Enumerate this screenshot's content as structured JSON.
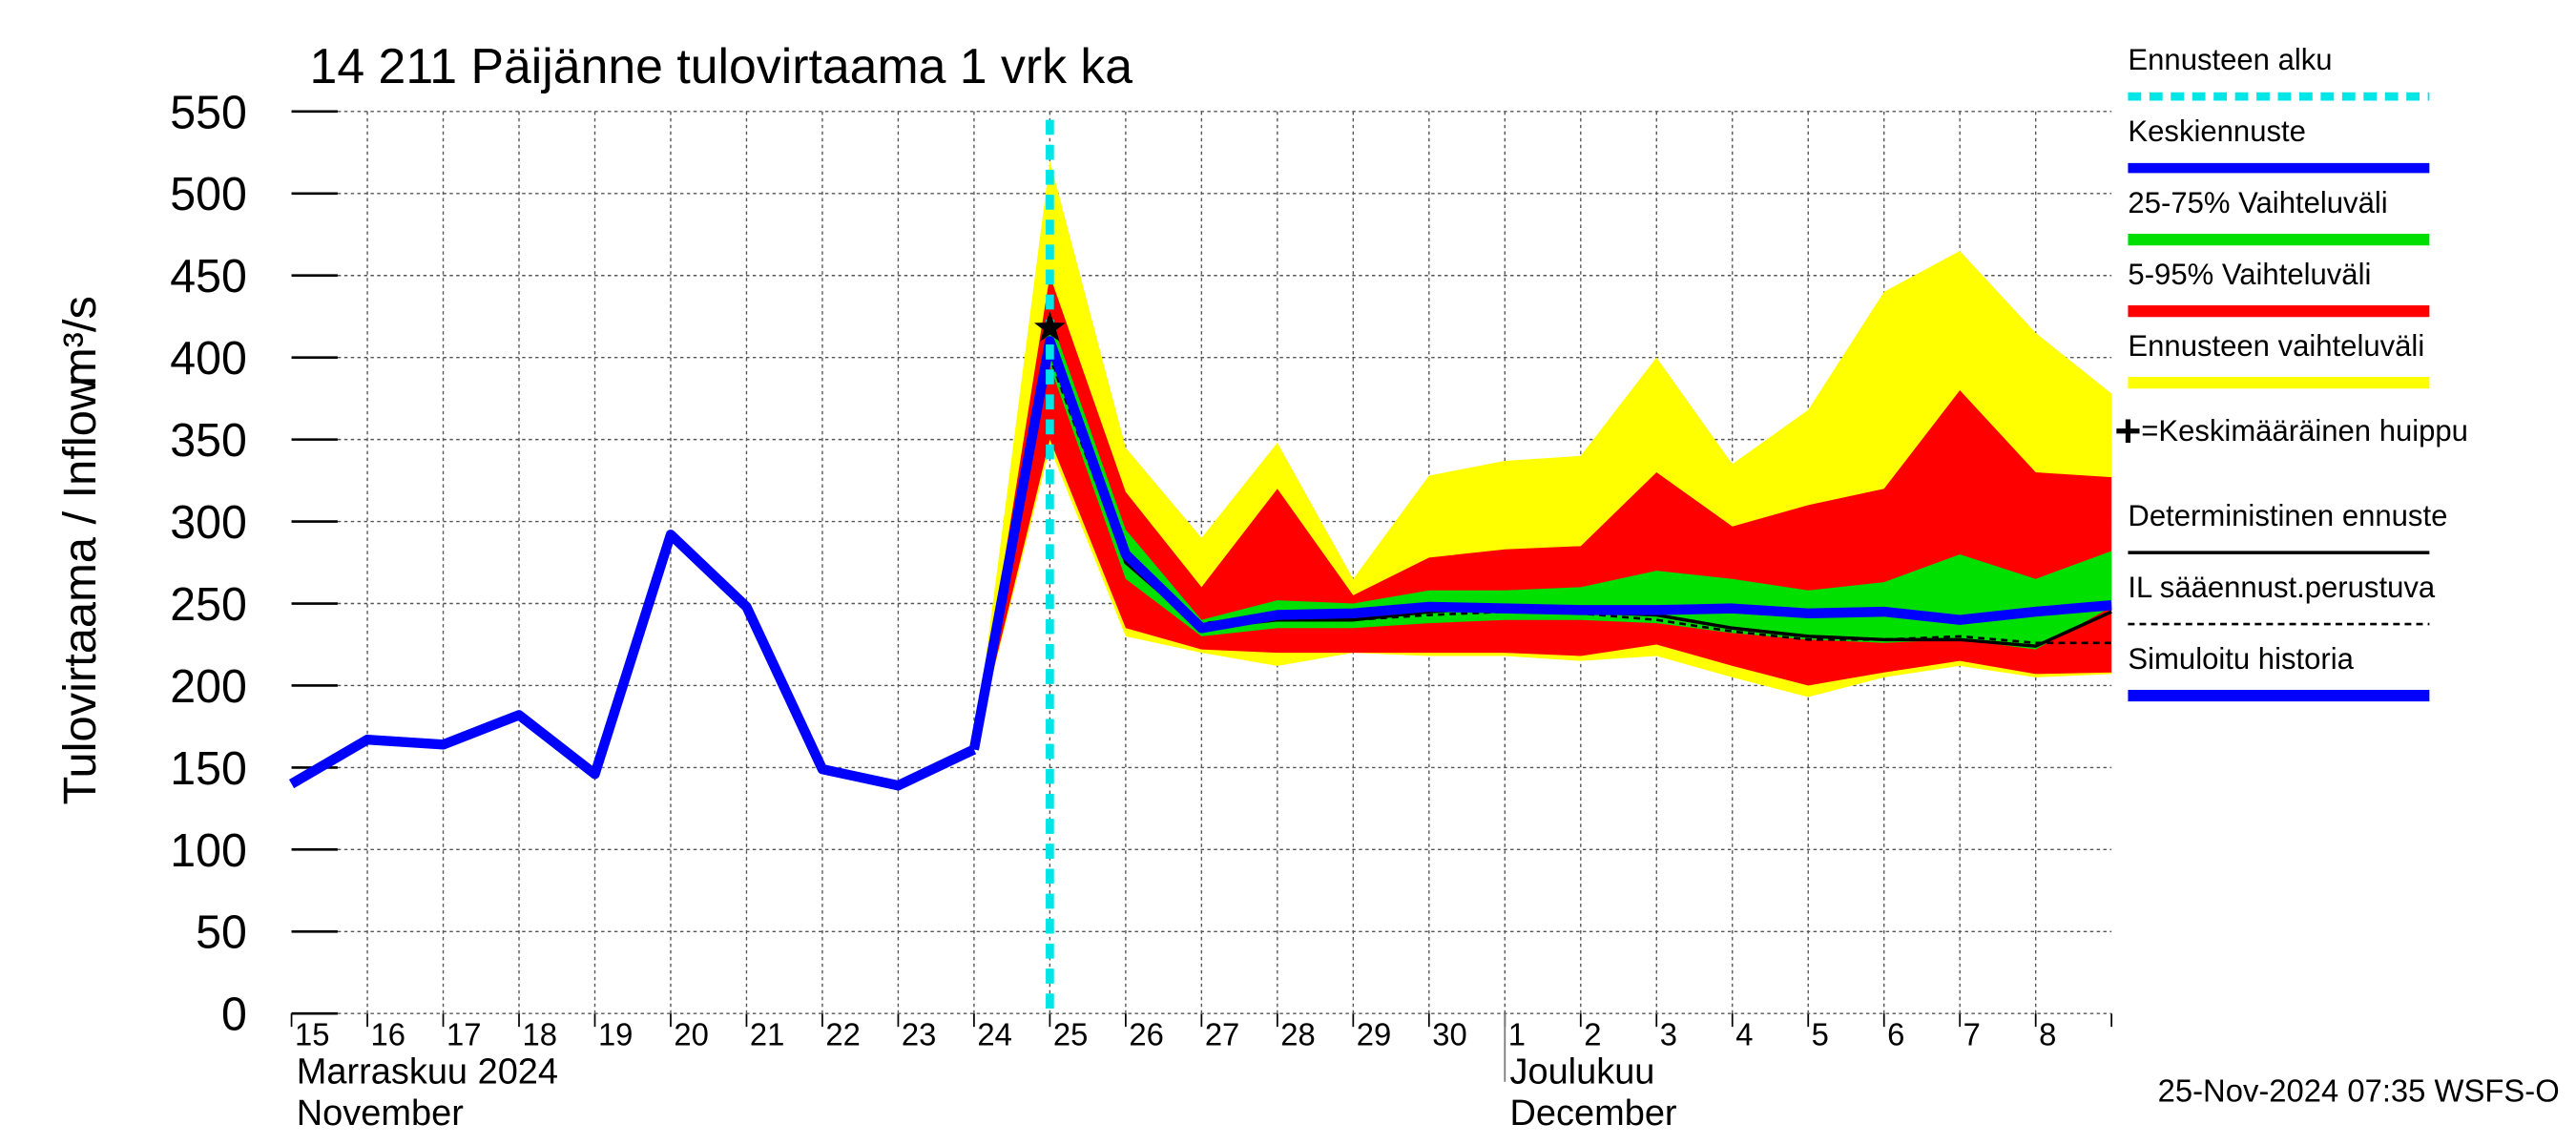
{
  "chart_data": {
    "type": "line",
    "title": "14 211 Päijänne tulovirtaama 1 vrk ka",
    "y_label": "Tulovirtaama / Inflow",
    "y_unit": "m³/s",
    "categories": [
      "15",
      "16",
      "17",
      "18",
      "19",
      "20",
      "21",
      "22",
      "23",
      "24",
      "25",
      "26",
      "27",
      "28",
      "29",
      "30",
      "1",
      "2",
      "3",
      "4",
      "5",
      "6",
      "7",
      "8",
      null
    ],
    "months": [
      {
        "fi": "Marraskuu 2024",
        "en": "November",
        "start": "15"
      },
      {
        "fi": "Joulukuu",
        "en": "December",
        "start": "1"
      }
    ],
    "ylim": [
      0,
      550
    ],
    "yticks": [
      0,
      50,
      100,
      150,
      200,
      250,
      300,
      350,
      400,
      450,
      500,
      550
    ],
    "grid": true,
    "forecast_start": {
      "name": "Ennusteen alku",
      "color": "#00e5e5",
      "category": "25"
    },
    "bands": [
      {
        "name": "25-75% Vaihteluväli",
        "color": "#00e000",
        "upper": [
          null,
          null,
          null,
          null,
          null,
          null,
          null,
          null,
          null,
          161,
          425,
          295,
          240,
          252,
          250,
          258,
          258,
          260,
          270,
          265,
          258,
          263,
          280,
          265,
          282
        ],
        "lower": [
          null,
          null,
          null,
          null,
          null,
          null,
          null,
          null,
          null,
          161,
          395,
          265,
          230,
          235,
          235,
          238,
          240,
          240,
          238,
          232,
          228,
          226,
          228,
          222,
          248
        ]
      },
      {
        "name": "5-95% Vaihteluväli",
        "color": "#ff0000",
        "upper": [
          null,
          null,
          null,
          null,
          null,
          null,
          null,
          null,
          null,
          161,
          450,
          318,
          260,
          320,
          255,
          278,
          283,
          285,
          330,
          297,
          310,
          320,
          380,
          330,
          327
        ],
        "lower": [
          null,
          null,
          null,
          null,
          null,
          null,
          null,
          null,
          null,
          161,
          350,
          235,
          222,
          220,
          220,
          220,
          220,
          218,
          225,
          212,
          200,
          208,
          215,
          207,
          208
        ]
      },
      {
        "name": "Ennusteen vaihteluväli",
        "color": "#ffff00",
        "upper": [
          null,
          null,
          null,
          null,
          null,
          null,
          null,
          null,
          null,
          161,
          520,
          345,
          290,
          348,
          265,
          328,
          337,
          340,
          400,
          335,
          368,
          440,
          465,
          415,
          378
        ],
        "lower": [
          null,
          null,
          null,
          null,
          null,
          null,
          null,
          null,
          null,
          161,
          345,
          230,
          220,
          212,
          220,
          218,
          218,
          215,
          218,
          205,
          193,
          205,
          212,
          205,
          207
        ]
      }
    ],
    "peak": {
      "name": "=Keskimääräinen huippu",
      "category": "25",
      "value": 418
    },
    "series": [
      {
        "name": "Keskiennuste",
        "color": "#0000ff",
        "style": "thick",
        "values": [
          null,
          null,
          null,
          null,
          null,
          null,
          null,
          null,
          null,
          161,
          410,
          280,
          235,
          243,
          244,
          248,
          247,
          246,
          246,
          247,
          244,
          245,
          240,
          245,
          249
        ]
      },
      {
        "name": "Deterministinen ennuste",
        "color": "#000000",
        "style": "thin",
        "values": [
          null,
          null,
          null,
          null,
          null,
          null,
          null,
          null,
          null,
          161,
          410,
          275,
          235,
          240,
          240,
          245,
          248,
          245,
          243,
          235,
          230,
          228,
          228,
          224,
          245
        ]
      },
      {
        "name": "IL sääennust.perustuva",
        "color": "#000000",
        "style": "dashed",
        "values": [
          null,
          null,
          null,
          null,
          null,
          null,
          null,
          null,
          null,
          161,
          400,
          275,
          238,
          242,
          240,
          243,
          245,
          244,
          240,
          233,
          228,
          228,
          230,
          226,
          226
        ]
      },
      {
        "name": "Simuloitu historia",
        "color": "#0000ff",
        "style": "thick",
        "values": [
          140,
          167,
          164,
          182,
          146,
          292,
          248,
          149,
          139,
          161,
          null,
          null,
          null,
          null,
          null,
          null,
          null,
          null,
          null,
          null,
          null,
          null,
          null,
          null,
          null
        ]
      }
    ],
    "footer": "25-Nov-2024 07:35 WSFS-O"
  }
}
